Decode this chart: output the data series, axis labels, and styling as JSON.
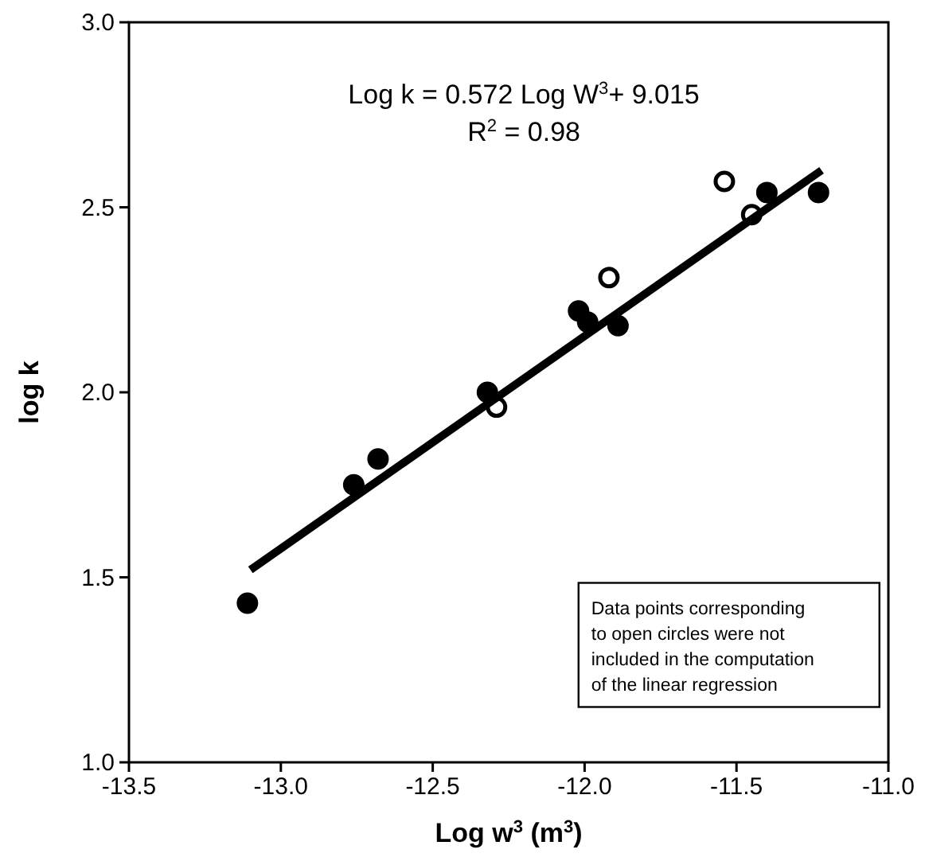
{
  "chart_data": {
    "type": "scatter",
    "xlabel": "Log w$^{3}$ (m$^{3}$)",
    "ylabel": "log k",
    "xlim": [
      -13.5,
      -11.0
    ],
    "ylim": [
      1.0,
      3.0
    ],
    "xticks": [
      {
        "value": -13.5,
        "label": "-13.5"
      },
      {
        "value": -13,
        "label": "-13.0"
      },
      {
        "value": -12.5,
        "label": "-12.5"
      },
      {
        "value": -12,
        "label": "-12.0"
      },
      {
        "value": -11.5,
        "label": "-11.5"
      },
      {
        "value": -11,
        "label": "-11.0"
      }
    ],
    "yticks": [
      {
        "value": 1,
        "label": "1.0"
      },
      {
        "value": 1.5,
        "label": "1.5"
      },
      {
        "value": 2,
        "label": "2.0"
      },
      {
        "value": 2.5,
        "label": "2.5"
      },
      {
        "value": 3,
        "label": "3.0"
      }
    ],
    "grid": false,
    "marker": "circle",
    "series": [
      {
        "color": "#000000",
        "x": [
          -13.11,
          -12.76,
          -12.68,
          -12.32,
          -12.02,
          -11.99,
          -11.89,
          -11.4,
          -11.23
        ],
        "values": [
          1.43,
          1.75,
          1.82,
          2.0,
          2.22,
          2.19,
          2.18,
          2.54,
          2.54
        ]
      },
      {
        "color": "#ffffff",
        "x": [
          -12.29,
          -11.92,
          -11.54,
          -11.45
        ],
        "values": [
          1.96,
          2.31,
          2.57,
          2.48
        ]
      },
      {
        "type": "line",
        "color": "#000000",
        "marker": "none",
        "x": [
          -13.1,
          -11.22
        ],
        "values": [
          1.52,
          2.6
        ]
      }
    ],
    "annotations": [
      "Log k = 0.572 Log W$^{3}$+ 9.015",
      "R$^{2}$ = 0.98",
      "Data points corresponding\nto open circles were not\nincluded in the computation\nof the linear regression"
    ]
  }
}
